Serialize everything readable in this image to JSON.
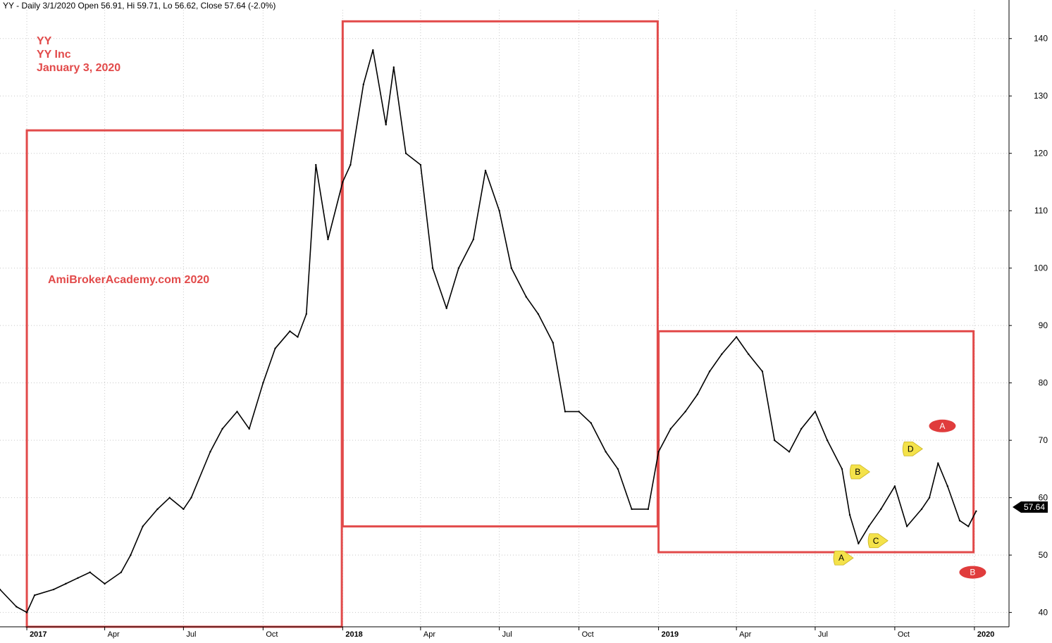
{
  "header": {
    "text": "YY - Daily 3/1/2020 Open 56.91, Hi 59.71, Lo 56.62, Close 57.64 (-2.0%)"
  },
  "watermark": {
    "ticker": "YY",
    "company": "YY Inc",
    "date": "January 3, 2020",
    "site": "AmiBrokerAcademy.com   2020"
  },
  "last_price_label": "57.64",
  "colors": {
    "price_line": "#000000",
    "box": "#e24a4a",
    "annotation_red": "#e03c3c",
    "annotation_yellow": "#f4e24a",
    "grid": "#c8c8c8"
  },
  "chart_data": {
    "type": "line",
    "title": "",
    "xlabel": "",
    "ylabel": "",
    "x_tick_labels": [
      "2017",
      "Apr",
      "Jul",
      "Oct",
      "2018",
      "Apr",
      "Jul",
      "Oct",
      "2019",
      "Apr",
      "Jul",
      "Oct",
      "2020"
    ],
    "x_tick_dates": [
      "2017-01-01",
      "2017-04-01",
      "2017-07-01",
      "2017-10-01",
      "2018-01-01",
      "2018-04-01",
      "2018-07-01",
      "2018-10-01",
      "2019-01-01",
      "2019-04-01",
      "2019-07-01",
      "2019-10-01",
      "2020-01-01"
    ],
    "y_ticks": [
      40,
      50,
      60,
      70,
      80,
      90,
      100,
      110,
      120,
      130,
      140
    ],
    "ylim": [
      37.5,
      145
    ],
    "xlim": [
      "2016-12-01",
      "2020-02-10"
    ],
    "grid": true,
    "series": [
      {
        "x": [
          "2016-12-01",
          "2016-12-20",
          "2017-01-01",
          "2017-01-10",
          "2017-02-01",
          "2017-02-15",
          "2017-03-01",
          "2017-03-15",
          "2017-04-01",
          "2017-04-20",
          "2017-05-01",
          "2017-05-15",
          "2017-06-01",
          "2017-06-15",
          "2017-07-01",
          "2017-07-10",
          "2017-08-01",
          "2017-08-15",
          "2017-09-01",
          "2017-09-15",
          "2017-10-01",
          "2017-10-15",
          "2017-11-01",
          "2017-11-10",
          "2017-11-20",
          "2017-12-01",
          "2017-12-15",
          "2018-01-01",
          "2018-01-10",
          "2018-01-25",
          "2018-02-05",
          "2018-02-20",
          "2018-03-01",
          "2018-03-15",
          "2018-04-01",
          "2018-04-15",
          "2018-05-01",
          "2018-05-15",
          "2018-06-01",
          "2018-06-15",
          "2018-07-01",
          "2018-07-15",
          "2018-08-01",
          "2018-08-15",
          "2018-09-01",
          "2018-09-15",
          "2018-10-01",
          "2018-10-15",
          "2018-11-01",
          "2018-11-15",
          "2018-12-01",
          "2018-12-20",
          "2019-01-01",
          "2019-01-15",
          "2019-02-01",
          "2019-02-15",
          "2019-03-01",
          "2019-03-15",
          "2019-04-01",
          "2019-04-15",
          "2019-05-01",
          "2019-05-15",
          "2019-06-01",
          "2019-06-15",
          "2019-07-01",
          "2019-07-15",
          "2019-08-01",
          "2019-08-10",
          "2019-08-20",
          "2019-09-01",
          "2019-09-15",
          "2019-10-01",
          "2019-10-15",
          "2019-11-01",
          "2019-11-10",
          "2019-11-20",
          "2019-12-01",
          "2019-12-15",
          "2019-12-25",
          "2020-01-03"
        ],
        "y": [
          44,
          41,
          40,
          43,
          44,
          45,
          46,
          47,
          45,
          47,
          50,
          55,
          58,
          60,
          58,
          60,
          68,
          72,
          75,
          72,
          80,
          86,
          89,
          88,
          92,
          118,
          105,
          115,
          118,
          132,
          138,
          125,
          135,
          120,
          118,
          100,
          93,
          100,
          105,
          117,
          110,
          100,
          95,
          92,
          87,
          75,
          75,
          73,
          68,
          65,
          58,
          58,
          68,
          72,
          75,
          78,
          82,
          85,
          88,
          85,
          82,
          70,
          68,
          72,
          75,
          70,
          65,
          57,
          52,
          55,
          58,
          62,
          55,
          58,
          60,
          66,
          62,
          56,
          55,
          57.64
        ]
      }
    ],
    "boxes": [
      {
        "x0": "2017-01-01",
        "x1": "2017-12-31",
        "y0": 37.5,
        "y1": 124
      },
      {
        "x0": "2018-01-01",
        "x1": "2018-12-31",
        "y0": 55,
        "y1": 143
      },
      {
        "x0": "2019-01-01",
        "x1": "2019-12-31",
        "y0": 50.5,
        "y1": 89
      }
    ],
    "annotations": [
      {
        "label": "A",
        "style": "yellow-pointer",
        "x": "2019-08-01",
        "y": 49.5
      },
      {
        "label": "B",
        "style": "yellow-pointer",
        "x": "2019-08-20",
        "y": 64.5
      },
      {
        "label": "C",
        "style": "yellow-pointer",
        "x": "2019-09-10",
        "y": 52.5
      },
      {
        "label": "D",
        "style": "yellow-pointer",
        "x": "2019-10-20",
        "y": 68.5
      },
      {
        "label": "A",
        "style": "red-oval",
        "x": "2019-11-25",
        "y": 72.5
      },
      {
        "label": "B",
        "style": "red-oval",
        "x": "2019-12-30",
        "y": 47
      }
    ]
  }
}
